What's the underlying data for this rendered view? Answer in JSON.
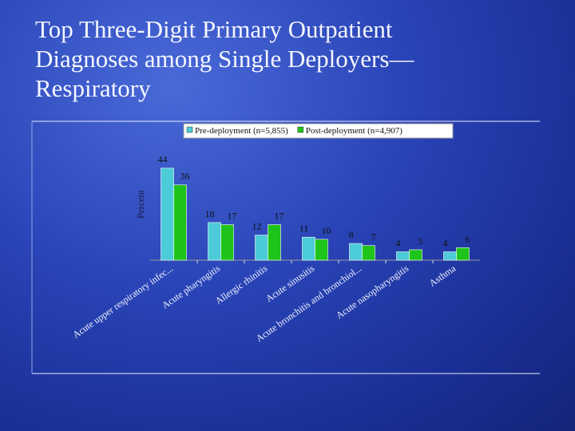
{
  "chart_data": {
    "type": "bar",
    "title": "Top Three-Digit Primary Outpatient Diagnoses among Single Deployers—Respiratory",
    "y_label": "Percent",
    "categories": [
      "Acute upper respiratory infec...",
      "Acute pharyngitis",
      "Allergic rhinitis",
      "Acute sinusitis",
      "Acute bronchitis and bronchiol...",
      "Acute nasopharyngitis",
      "Asthma"
    ],
    "series": [
      {
        "name": "Pre-deployment (n=5,855)",
        "color": "#4ccbd8",
        "values": [
          44,
          18,
          12,
          11,
          8,
          4,
          4
        ]
      },
      {
        "name": "Post-deployment (n=4,907)",
        "color": "#1ec41a",
        "values": [
          36,
          17,
          17,
          10,
          7,
          5,
          6
        ]
      }
    ],
    "ylim": [
      0,
      50
    ],
    "legend": "top"
  }
}
